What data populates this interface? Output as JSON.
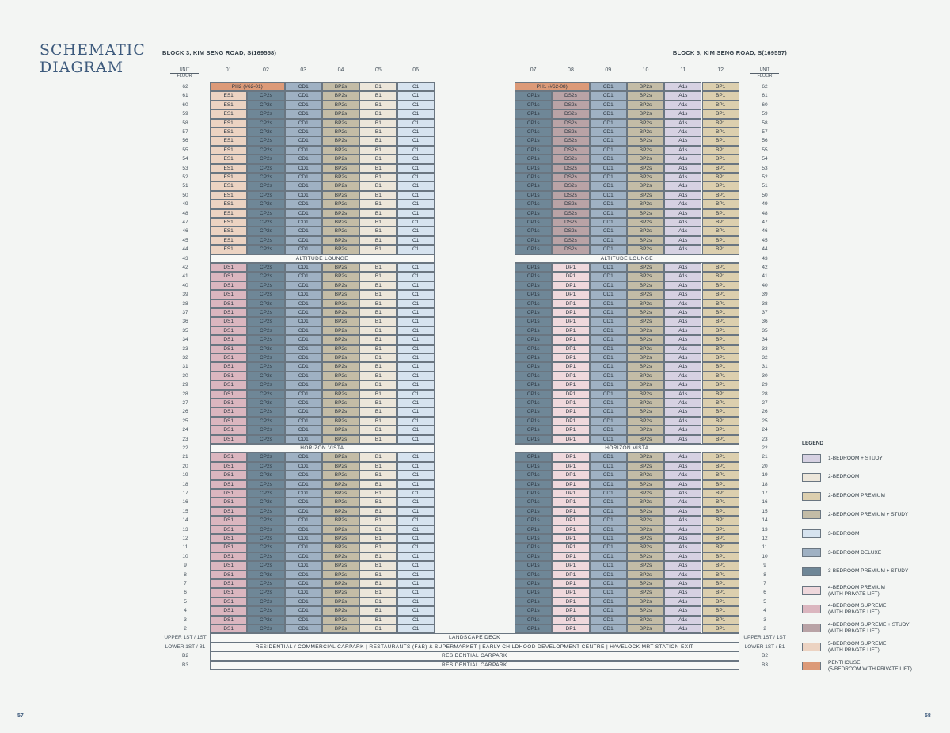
{
  "title_line1": "SCHEMATIC",
  "title_line2": "DIAGRAM",
  "block3": {
    "label": "BLOCK 3, KIM SENG ROAD, S(169558)",
    "cols": [
      "01",
      "02",
      "03",
      "04",
      "05",
      "06"
    ]
  },
  "block5": {
    "label": "BLOCK 5, KIM SENG ROAD, S(169557)",
    "cols": [
      "07",
      "08",
      "09",
      "10",
      "11",
      "12"
    ]
  },
  "unit_label": "UNIT",
  "floor_label": "FLOOR",
  "floors_top": [
    "62",
    "61",
    "60",
    "59",
    "58",
    "57",
    "56",
    "55",
    "54",
    "53",
    "52",
    "51",
    "50",
    "49",
    "48",
    "47",
    "46",
    "45",
    "44",
    "43",
    "42",
    "41",
    "40",
    "39",
    "38",
    "37",
    "36",
    "35",
    "34",
    "33",
    "32",
    "31",
    "30",
    "29",
    "28",
    "27",
    "26",
    "25",
    "24",
    "23",
    "22",
    "21",
    "20",
    "19",
    "18",
    "17",
    "16",
    "15",
    "14",
    "13",
    "12",
    "11",
    "10",
    "9",
    "8",
    "7",
    "6",
    "5",
    "4",
    "3",
    "2"
  ],
  "floors_bottom": [
    "UPPER 1ST / 1ST",
    "LOWER 1ST / B1",
    "B2",
    "B3"
  ],
  "penthouses": {
    "left": "PH2 (#62-01)",
    "right": "PH1 (#62-08)"
  },
  "bands": {
    "altitude": "ALTITUDE LOUNGE",
    "horizon": "HORIZON VISTA"
  },
  "bottom_bands": [
    "LANDSCAPE DECK",
    "RESIDENTIAL / COMMERCIAL CARPARK   |   RESTAURANTS (F&B) & SUPERMARKET   |   EARLY CHILDHOOD DEVELOPMENT CENTRE   |   HAVELOCK MRT STATION EXIT",
    "RESIDENTIAL CARPARK",
    "RESIDENTIAL CARPARK"
  ],
  "types": {
    "upper_left": [
      "ES1",
      "CP2s",
      "CD1",
      "BP2s",
      "B1",
      "C1"
    ],
    "lower_left": [
      "DS1",
      "CP2s",
      "CD1",
      "BP2s",
      "B1",
      "C1"
    ],
    "upper_right": [
      "CP1s",
      "DS2s",
      "CD1",
      "BP2s",
      "A1s",
      "BP1"
    ],
    "lower_right": [
      "CP1s",
      "DP1",
      "CD1",
      "BP2s",
      "A1s",
      "BP1"
    ],
    "row62_left_tail": [
      "CD1",
      "BP2s",
      "B1",
      "C1"
    ],
    "row62_right_tail": [
      "CD1",
      "BP2s",
      "A1s",
      "BP1"
    ]
  },
  "type_colors": {
    "A1s": "#d6d1e2",
    "B1": "#ece6da",
    "BP1": "#dccfae",
    "BP2s": "#c3bca6",
    "C1": "#d6e3ef",
    "CD1": "#9fb1c3",
    "CP1s": "#6f8797",
    "CP2s": "#6f8797",
    "DP1": "#efd8dc",
    "DS1": "#dbb6bf",
    "DS2s": "#b9a3a6",
    "ES1": "#ecd3c2",
    "PH": "#dc9a78"
  },
  "legend": {
    "title": "LEGEND",
    "items": [
      {
        "label": "1-BEDROOM + STUDY",
        "sub": "",
        "color": "#d6d1e2"
      },
      {
        "label": "2-BEDROOM",
        "sub": "",
        "color": "#ece6da"
      },
      {
        "label": "2-BEDROOM PREMIUM",
        "sub": "",
        "color": "#dccfae"
      },
      {
        "label": "2-BEDROOM PREMIUM + STUDY",
        "sub": "",
        "color": "#c3bca6"
      },
      {
        "label": "3-BEDROOM",
        "sub": "",
        "color": "#d6e3ef"
      },
      {
        "label": "3-BEDROOM DELUXE",
        "sub": "",
        "color": "#9fb1c3"
      },
      {
        "label": "3-BEDROOM PREMIUM + STUDY",
        "sub": "",
        "color": "#6f8797"
      },
      {
        "label": "4-BEDROOM PREMIUM",
        "sub": "(WITH PRIVATE LIFT)",
        "color": "#efd8dc"
      },
      {
        "label": "4-BEDROOM SUPREME",
        "sub": "(WITH PRIVATE LIFT)",
        "color": "#dbb6bf"
      },
      {
        "label": "4-BEDROOM SUPREME + STUDY",
        "sub": "(WITH PRIVATE LIFT)",
        "color": "#b9a3a6"
      },
      {
        "label": "5-BEDROOM SUPREME",
        "sub": "(WITH PRIVATE LIFT)",
        "color": "#ecd3c2"
      },
      {
        "label": "PENTHOUSE",
        "sub": "(5-BEDROOM WITH PRIVATE LIFT)",
        "color": "#dc9a78"
      }
    ]
  },
  "page_left": "57",
  "page_right": "58"
}
